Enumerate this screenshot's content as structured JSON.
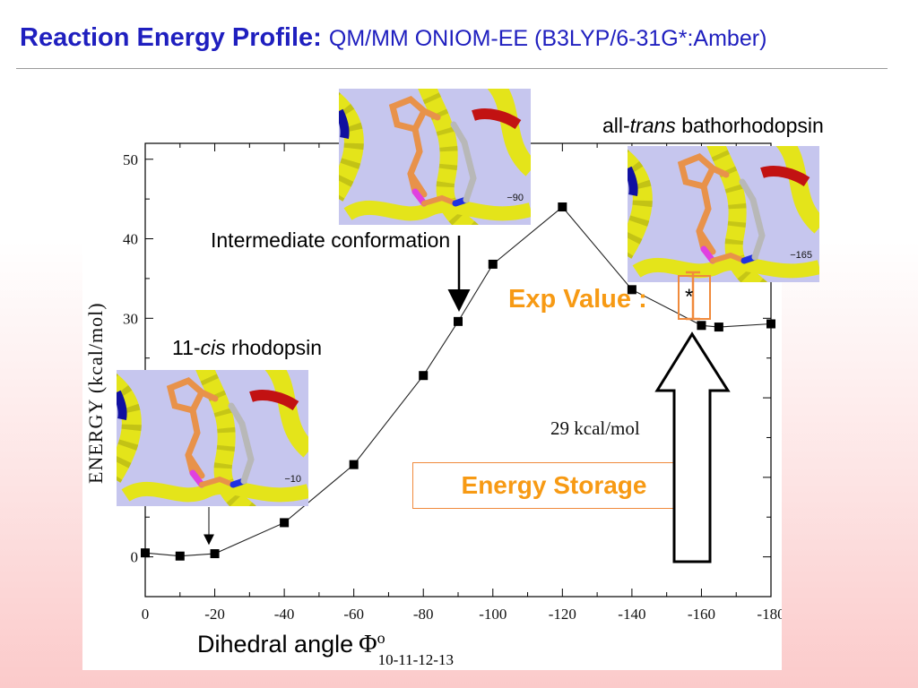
{
  "title": {
    "main": "Reaction Energy Profile:",
    "sub": "QM/MM ONIOM-EE (B3LYP/6-31G*:Amber)"
  },
  "labels": {
    "cis_prefix": "11-",
    "cis_italic": "cis",
    "cis_suffix": " rhodopsin",
    "intermediate": "Intermediate conformation",
    "trans_prefix": "all-",
    "trans_italic": "trans",
    "trans_suffix": " bathorhodopsin",
    "exp_value": "Exp Value :",
    "energy_storage": "Energy Storage",
    "dihedral": "Dihedral angle",
    "phi": "Φ",
    "phi_sup": "o",
    "phi_sub": "10-11-12-13"
  },
  "thumbnails": [
    {
      "id": "cis",
      "angle_label": "−10"
    },
    {
      "id": "intermediate",
      "angle_label": "−90"
    },
    {
      "id": "trans",
      "angle_label": "−165"
    }
  ],
  "colors": {
    "title": "#1f1fbf",
    "accent": "#f79a14",
    "ribbon": "#e4e41a",
    "retinal": "#e8924a"
  },
  "chart_data": {
    "type": "line",
    "title": "",
    "xlabel": "Dihedral angle Φ°10-11-12-13",
    "ylabel": "ENERGY (kcal/mol)",
    "x": [
      0,
      -10,
      -20,
      -40,
      -60,
      -80,
      -90,
      -100,
      -120,
      -140,
      -160,
      -165,
      -180
    ],
    "values": [
      0.5,
      0.1,
      0.4,
      4.3,
      11.6,
      22.8,
      29.6,
      36.8,
      44.0,
      33.6,
      29.1,
      28.9,
      29.3
    ],
    "xlim": [
      0,
      -180
    ],
    "ylim": [
      -5,
      52
    ],
    "xticks": [
      0,
      -20,
      -40,
      -60,
      -80,
      -100,
      -120,
      -140,
      -160,
      -180
    ],
    "xtick_labels": [
      "0",
      "-20",
      "-40",
      "-60",
      "-80",
      "-100",
      "-120",
      "-140",
      "-160",
      "-180"
    ],
    "yticks": [
      0,
      10,
      20,
      30,
      40,
      50
    ],
    "ytick_labels": [
      "0",
      "10",
      "20",
      "30",
      "40",
      "50"
    ],
    "annotation": "29 kcal/mol",
    "grid": false
  }
}
